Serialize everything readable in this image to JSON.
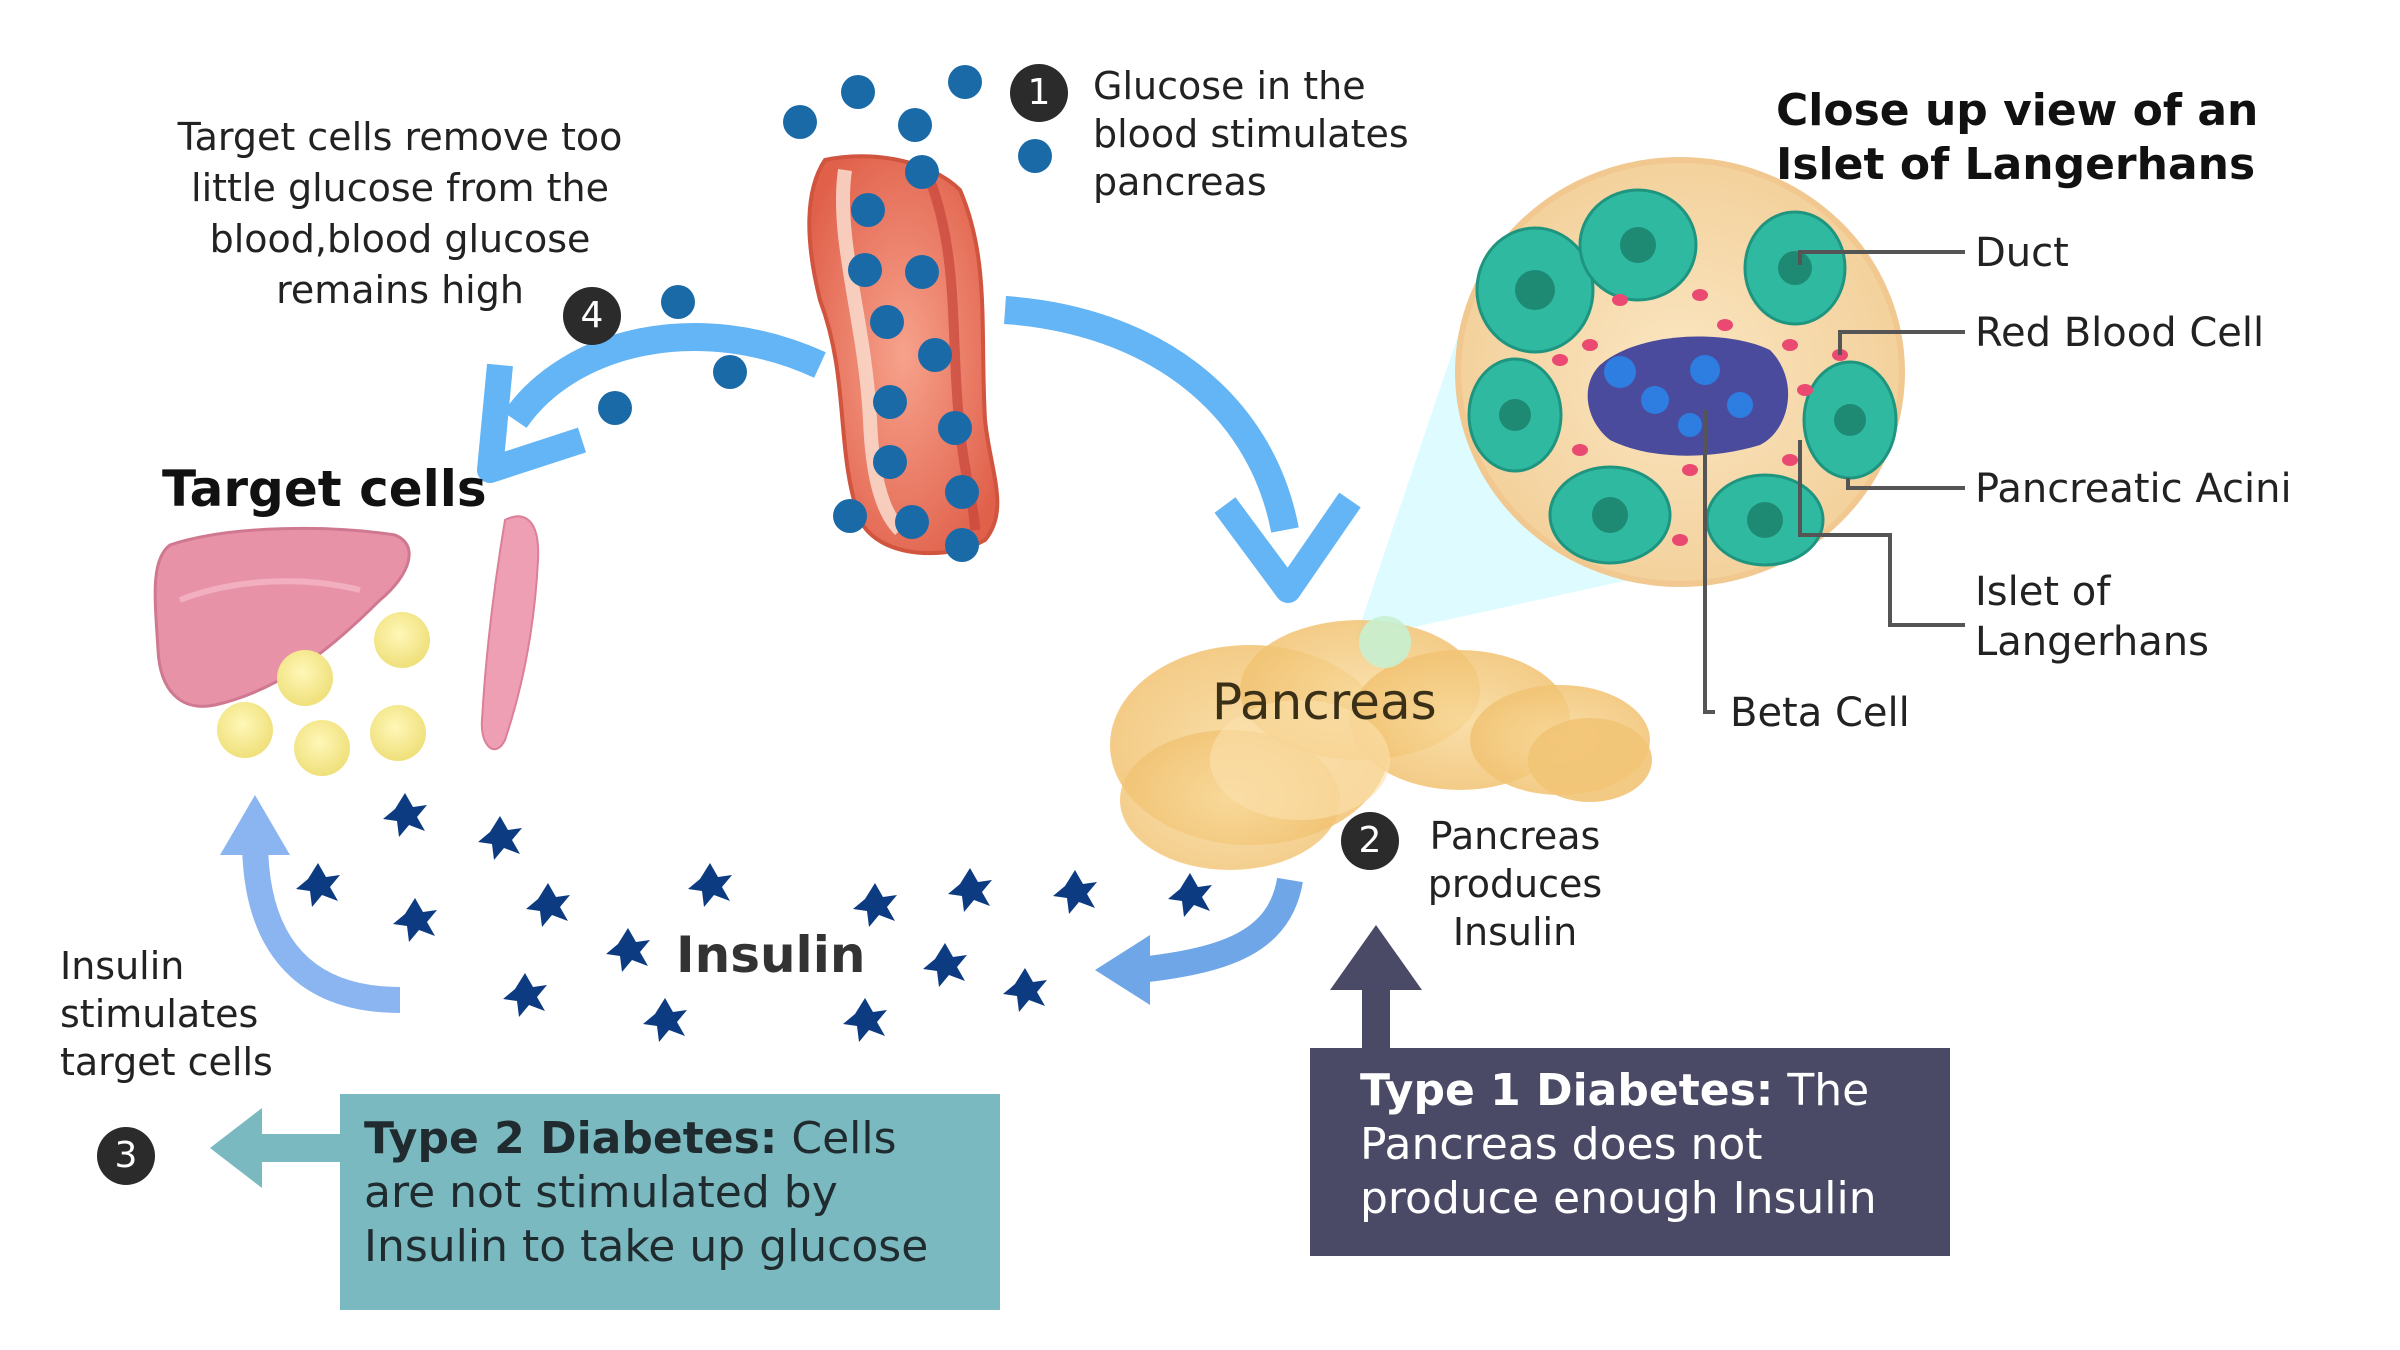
{
  "steps": {
    "step1": {
      "number": "1",
      "text": "Glucose in the\nblood stimulates\npancreas"
    },
    "step2": {
      "number": "2",
      "text": "Pancreas\nproduces\nInsulin"
    },
    "step3": {
      "number": "3",
      "text": "Insulin\nstimulates\ntarget cells"
    },
    "step4": {
      "number": "4",
      "text": "Target cells remove too\nlittle glucose from the\nblood,blood glucose\nremains high"
    }
  },
  "labels": {
    "target_cells": "Target cells",
    "pancreas": "Pancreas",
    "insulin": "Insulin"
  },
  "islet": {
    "title": "Close up view of an\nIslet of Langerhans",
    "parts": {
      "duct": "Duct",
      "red_blood_cell": "Red Blood Cell",
      "pancreatic_acini": "Pancreatic Acini",
      "islet_of_langerhans": "Islet of\nLangerhans",
      "beta_cell": "Beta Cell"
    }
  },
  "notes": {
    "type2": {
      "title": "Type 2 Diabetes:",
      "body": " Cells are not stimulated by Insulin to take up glucose"
    },
    "type1": {
      "title": "Type 1 Diabetes:",
      "body": " The Pancreas does not produce enough Insulin"
    }
  },
  "colors": {
    "arrow_blue": "#64b5f6",
    "glucose_dot": "#1a6aa8",
    "insulin": "#0d3b82",
    "type2_box": "#7ab9bf",
    "type1_box": "#4a4a66",
    "pancreas": "#f4cf86",
    "blood_vessel": "#e8775e",
    "acini": "#2fb9a0"
  }
}
